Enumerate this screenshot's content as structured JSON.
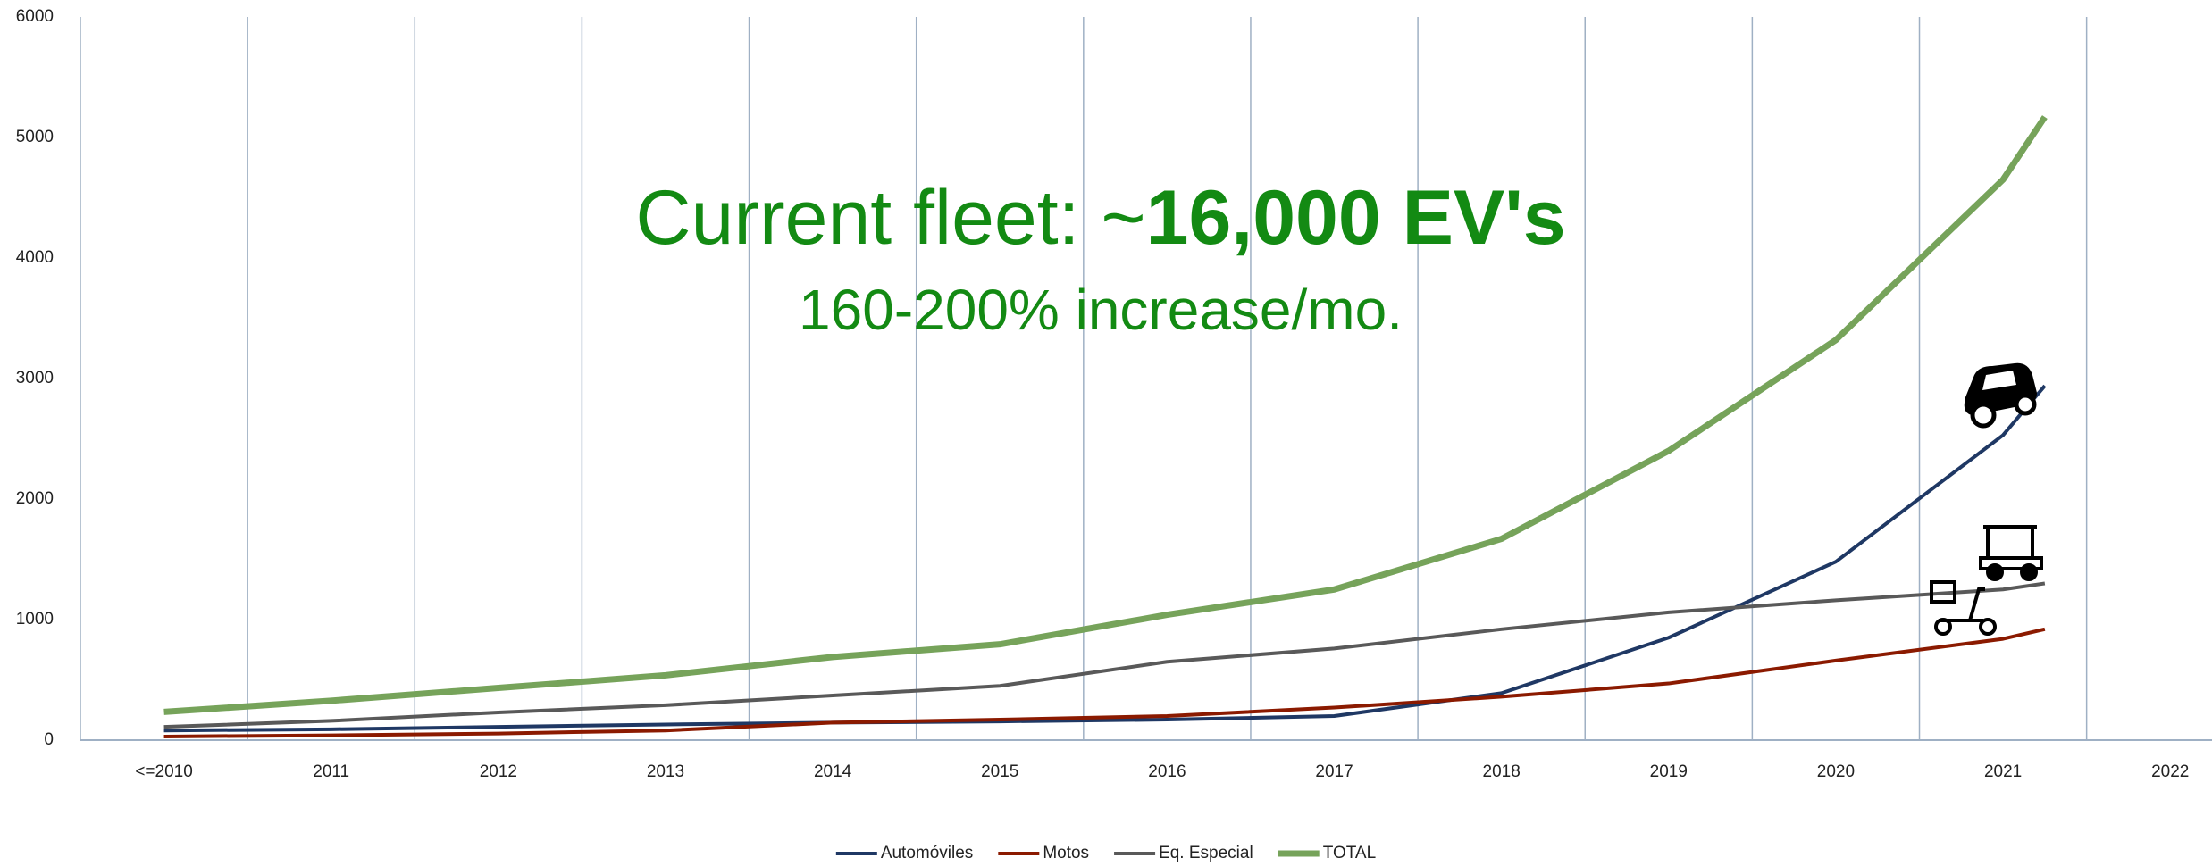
{
  "chart_data": {
    "type": "line",
    "annotations": [
      "Current fleet: ~",
      "16,000 EV's",
      "160-200% increase/mo."
    ],
    "x": [
      2010,
      2011,
      2012,
      2013,
      2014,
      2015,
      2016,
      2017,
      2018,
      2019,
      2020,
      2021,
      2021.25
    ],
    "series": [
      {
        "name": "Automóviles",
        "color": "#1f3864",
        "values": [
          80,
          90,
          110,
          130,
          145,
          155,
          170,
          200,
          390,
          850,
          1480,
          2530,
          2940
        ]
      },
      {
        "name": "Motos",
        "color": "#8b1a00",
        "values": [
          30,
          40,
          55,
          80,
          145,
          170,
          200,
          270,
          360,
          470,
          660,
          840,
          920
        ]
      },
      {
        "name": "Eq. Especial",
        "color": "#595959",
        "values": [
          110,
          160,
          230,
          290,
          370,
          450,
          650,
          760,
          920,
          1060,
          1160,
          1250,
          1300
        ]
      },
      {
        "name": "TOTAL",
        "color": "#76a35a",
        "values": [
          234,
          327,
          433,
          538,
          690,
          795,
          1040,
          1250,
          1670,
          2400,
          3320,
          4650,
          5170
        ]
      }
    ],
    "xlim": [
      2009.5,
      2022.25
    ],
    "xticks": [
      {
        "value": 2010,
        "label": "<=2010"
      },
      2011,
      2012,
      2013,
      2014,
      2015,
      2016,
      2017,
      2018,
      2019,
      2020,
      2021,
      2022
    ],
    "ylim": [
      0,
      6000
    ],
    "yticks": [
      0,
      1000,
      2000,
      3000,
      4000,
      5000,
      6000
    ],
    "grid": true,
    "legend": "bottom"
  }
}
